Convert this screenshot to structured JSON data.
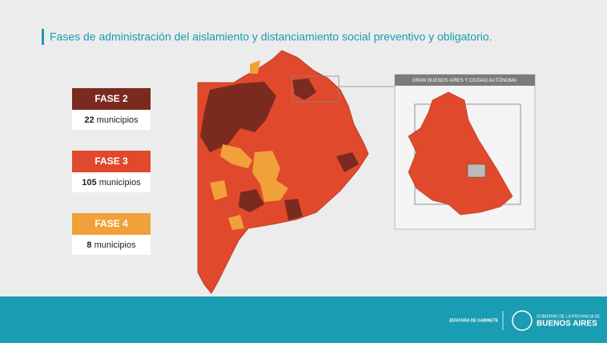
{
  "title": "Fases de administración del aislamiento y distanciamiento social preventivo y obligatorio.",
  "phases": [
    {
      "name": "FASE 2",
      "count": 22,
      "unit": "municipios",
      "color": "#7b2a20"
    },
    {
      "name": "FASE 3",
      "count": 105,
      "unit": "municipios",
      "color": "#e0492b"
    },
    {
      "name": "FASE 4",
      "count": 8,
      "unit": "municipios",
      "color": "#f0a13a"
    }
  ],
  "inset": {
    "title": "GRAN BUENOS AIRES Y CIUDAD AUTÓNOMA"
  },
  "footer": {
    "agency": "JEFATURA DE GABINETE",
    "gov_line": "GOBIERNO DE LA PROVINCIA DE",
    "gov_name": "BUENOS AIRES"
  }
}
